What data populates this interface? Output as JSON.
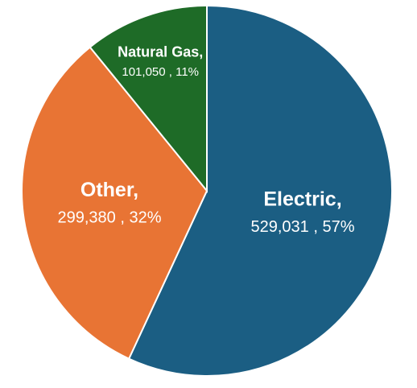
{
  "chart_data": {
    "type": "pie",
    "title": "",
    "legend": "none",
    "slices": [
      {
        "name": "Electric",
        "value": 529031,
        "percent": 57,
        "color": "#1B5E83",
        "value_label": "529,031 , 57%"
      },
      {
        "name": "Other",
        "value": 299380,
        "percent": 32,
        "color": "#E87434",
        "value_label": "299,380 , 32%"
      },
      {
        "name": "Natural Gas",
        "value": 101050,
        "percent": 11,
        "color": "#1E6B27",
        "value_label": "101,050 , 11%"
      }
    ]
  }
}
